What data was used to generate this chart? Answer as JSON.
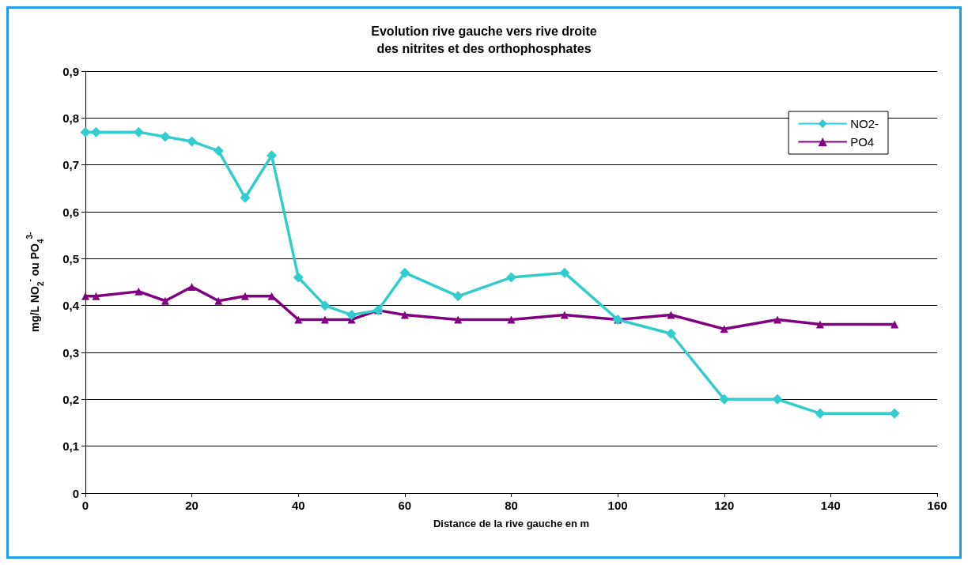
{
  "chart_data": {
    "type": "line",
    "title": "Evolution rive gauche vers rive droite\ndes nitrites et des orthophosphates",
    "xlabel": "Distance de la rive gauche en m",
    "ylabel": "mg/L NO$_{2}$$^{-}$ ou PO$_{4}$$^{3-}$",
    "x": [
      0,
      2,
      10,
      15,
      20,
      25,
      30,
      35,
      40,
      45,
      50,
      55,
      60,
      70,
      80,
      90,
      100,
      110,
      120,
      130,
      138,
      152
    ],
    "series": [
      {
        "name": "NO2-",
        "color": "#33cccc",
        "marker": "diamond",
        "values": [
          0.77,
          0.77,
          0.77,
          0.76,
          0.75,
          0.73,
          0.63,
          0.72,
          0.46,
          0.4,
          0.38,
          0.39,
          0.47,
          0.42,
          0.46,
          0.47,
          0.37,
          0.34,
          0.2,
          0.2,
          0.17,
          0.17
        ]
      },
      {
        "name": "PO4",
        "color": "#800080",
        "marker": "triangle",
        "values": [
          0.42,
          0.42,
          0.43,
          0.41,
          0.44,
          0.41,
          0.42,
          0.42,
          0.37,
          0.37,
          0.37,
          0.39,
          0.38,
          0.37,
          0.37,
          0.38,
          0.37,
          0.38,
          0.35,
          0.37,
          0.36,
          0.36
        ]
      }
    ],
    "xlim": [
      0,
      160
    ],
    "xticks": [
      0,
      20,
      40,
      60,
      80,
      100,
      120,
      140,
      160
    ],
    "ylim": [
      0,
      0.9
    ],
    "yticks": [
      {
        "value": 0,
        "label": "0"
      },
      {
        "value": 0.1,
        "label": "0,1"
      },
      {
        "value": 0.2,
        "label": "0,2"
      },
      {
        "value": 0.3,
        "label": "0,3"
      },
      {
        "value": 0.4,
        "label": "0,4"
      },
      {
        "value": 0.5,
        "label": "0,5"
      },
      {
        "value": 0.6,
        "label": "0,6"
      },
      {
        "value": 0.7,
        "label": "0,7"
      },
      {
        "value": 0.8,
        "label": "0,8"
      },
      {
        "value": 0.9,
        "label": "0,9"
      }
    ],
    "grid": "y",
    "legend": "top right",
    "line_style": "solid"
  }
}
